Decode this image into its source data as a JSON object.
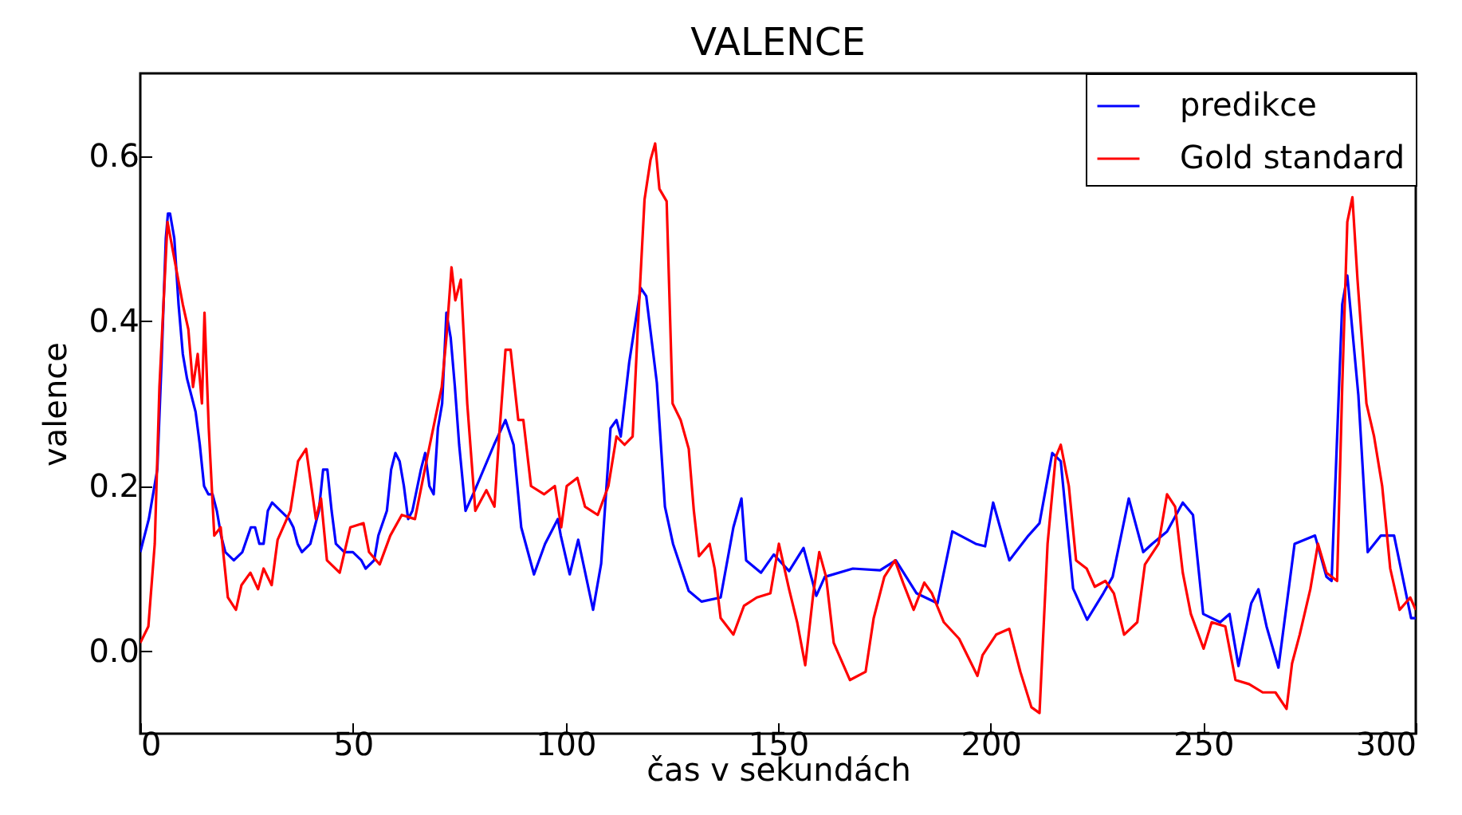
{
  "chart_data": {
    "type": "line",
    "title": "VALENCE",
    "xlabel": "čas v sekundách",
    "ylabel": "valence",
    "xlim": [
      0,
      300
    ],
    "xticks": [
      0,
      50,
      100,
      150,
      200,
      250,
      300
    ],
    "ylim": [
      -0.1,
      0.7
    ],
    "yticks": [
      {
        "value": 0,
        "label": "0.0"
      },
      {
        "value": 0.2,
        "label": "0.2"
      },
      {
        "value": 0.4,
        "label": "0.4"
      },
      {
        "value": 0.6,
        "label": "0.6"
      }
    ],
    "grid": false,
    "legend": "top right",
    "line_style": "solid",
    "marker": "none",
    "series": [
      {
        "name": "predikce",
        "color": "#0000ff",
        "x": [
          0,
          2,
          4,
          5,
          6,
          6.5,
          7,
          8,
          9,
          10,
          11,
          12,
          13,
          14,
          15,
          16,
          17,
          18,
          19,
          20,
          22,
          24,
          26,
          27,
          28,
          29,
          30,
          31,
          33,
          35,
          36,
          37,
          38,
          40,
          41,
          42,
          43,
          44,
          45,
          46,
          48,
          50,
          52,
          53,
          55,
          56,
          58,
          59,
          60,
          61,
          62,
          63,
          64,
          66,
          67,
          68,
          69,
          70,
          71,
          72,
          73,
          74,
          75,
          76.5,
          78.7,
          83.2,
          85.9,
          87.8,
          89.6,
          92.6,
          95.2,
          98.2,
          98.9,
          101,
          103,
          106.5,
          108.4,
          110.6,
          112,
          113,
          115,
          117.7,
          119,
          121.5,
          123.4,
          125.3,
          129,
          132,
          136.5,
          139.5,
          141.4,
          142.5,
          146,
          149,
          152.6,
          156,
          159,
          161,
          167.6,
          174,
          177.7,
          182.6,
          187.5,
          191,
          196.5,
          198.7,
          200.6,
          204.4,
          208.9,
          211.5,
          214.5,
          216.5,
          219.4,
          222.7,
          226.5,
          228.7,
          232.5,
          235.9,
          238,
          241.5,
          245.2,
          247.6,
          250,
          254,
          256.2,
          258.3,
          261.3,
          263,
          264.9,
          267.7,
          271.5,
          276.3,
          279,
          280.2,
          282.7,
          283.9,
          286.5,
          288.7,
          291.8,
          294.9,
          298.9,
          300
        ],
        "values": [
          0.12,
          0.16,
          0.22,
          0.35,
          0.5,
          0.53,
          0.53,
          0.5,
          0.42,
          0.36,
          0.33,
          0.31,
          0.29,
          0.25,
          0.2,
          0.19,
          0.19,
          0.17,
          0.14,
          0.12,
          0.11,
          0.12,
          0.15,
          0.15,
          0.13,
          0.13,
          0.17,
          0.18,
          0.17,
          0.16,
          0.15,
          0.13,
          0.12,
          0.13,
          0.15,
          0.17,
          0.22,
          0.22,
          0.17,
          0.13,
          0.12,
          0.12,
          0.11,
          0.1,
          0.11,
          0.14,
          0.17,
          0.22,
          0.24,
          0.23,
          0.2,
          0.16,
          0.17,
          0.22,
          0.24,
          0.2,
          0.19,
          0.27,
          0.3,
          0.41,
          0.38,
          0.32,
          0.25,
          0.17,
          0.195,
          0.25,
          0.28,
          0.25,
          0.15,
          0.093,
          0.13,
          0.16,
          0.14,
          0.093,
          0.135,
          0.05,
          0.106,
          0.27,
          0.28,
          0.26,
          0.35,
          0.44,
          0.43,
          0.325,
          0.175,
          0.13,
          0.073,
          0.06,
          0.065,
          0.15,
          0.185,
          0.11,
          0.095,
          0.117,
          0.097,
          0.125,
          0.067,
          0.09,
          0.1,
          0.098,
          0.11,
          0.07,
          0.058,
          0.145,
          0.13,
          0.127,
          0.18,
          0.11,
          0.14,
          0.155,
          0.24,
          0.23,
          0.076,
          0.038,
          0.07,
          0.09,
          0.185,
          0.12,
          0.13,
          0.145,
          0.18,
          0.165,
          0.045,
          0.035,
          0.045,
          -0.018,
          0.058,
          0.075,
          0.03,
          -0.02,
          0.13,
          0.14,
          0.09,
          0.085,
          0.42,
          0.455,
          0.31,
          0.12,
          0.14,
          0.14,
          0.04,
          0.04
        ]
      },
      {
        "name": "Gold standard",
        "color": "#ff0000",
        "x": [
          0,
          1.9,
          3.4,
          4.5,
          6.4,
          8.2,
          10,
          11.3,
          12.4,
          13.5,
          14.5,
          15.1,
          16.1,
          17.4,
          18.9,
          20.6,
          22.5,
          23.8,
          25.9,
          27.7,
          29,
          30.9,
          32.3,
          35.3,
          37.1,
          39,
          41.3,
          42.5,
          43.9,
          46.9,
          49.4,
          52.5,
          53.8,
          56.3,
          58.8,
          61.5,
          64.6,
          67.5,
          70.9,
          72,
          73.2,
          74.1,
          75.4,
          76.9,
          78.8,
          81.4,
          83.3,
          84.4,
          85.9,
          87.1,
          88.9,
          90.1,
          91.9,
          95,
          97.5,
          99,
          100.3,
          102.8,
          104.6,
          107.6,
          110.1,
          112,
          113.9,
          115.8,
          117,
          118.6,
          120,
          121.1,
          122.1,
          123.8,
          125.2,
          127.1,
          129,
          130.2,
          131.4,
          133.9,
          135.1,
          136.5,
          139.5,
          142,
          145,
          148.2,
          150.2,
          152.6,
          154.5,
          156.4,
          158.3,
          159.7,
          161.3,
          163.1,
          166.9,
          170.6,
          172.5,
          175,
          177.5,
          179.4,
          181.9,
          184.4,
          186.2,
          189,
          192.6,
          196.9,
          198.1,
          201.3,
          204.4,
          207,
          209.6,
          211.5,
          213.4,
          215.3,
          216.5,
          218.4,
          220.1,
          222.6,
          224.5,
          227,
          229,
          231.4,
          234.5,
          236.3,
          239.5,
          241.5,
          243.4,
          245.2,
          247.1,
          250.1,
          252,
          255.2,
          257.6,
          260.8,
          264,
          267,
          269.6,
          270.9,
          272.7,
          275.2,
          277,
          279,
          281.5,
          282.7,
          283.9,
          285.1,
          286.3,
          288.4,
          290.2,
          292.1,
          294,
          296.2,
          298.7,
          300
        ],
        "values": [
          0.01,
          0.03,
          0.13,
          0.32,
          0.52,
          0.47,
          0.42,
          0.39,
          0.32,
          0.36,
          0.3,
          0.41,
          0.27,
          0.14,
          0.15,
          0.065,
          0.05,
          0.08,
          0.095,
          0.075,
          0.1,
          0.08,
          0.135,
          0.17,
          0.23,
          0.245,
          0.16,
          0.185,
          0.11,
          0.095,
          0.15,
          0.155,
          0.12,
          0.105,
          0.14,
          0.165,
          0.16,
          0.235,
          0.32,
          0.38,
          0.465,
          0.425,
          0.45,
          0.3,
          0.17,
          0.195,
          0.175,
          0.26,
          0.365,
          0.365,
          0.28,
          0.28,
          0.2,
          0.19,
          0.2,
          0.15,
          0.2,
          0.21,
          0.175,
          0.165,
          0.2,
          0.26,
          0.25,
          0.26,
          0.39,
          0.547,
          0.595,
          0.615,
          0.56,
          0.545,
          0.3,
          0.28,
          0.245,
          0.17,
          0.115,
          0.13,
          0.1,
          0.04,
          0.02,
          0.055,
          0.065,
          0.07,
          0.13,
          0.075,
          0.035,
          -0.017,
          0.07,
          0.12,
          0.09,
          0.01,
          -0.035,
          -0.025,
          0.04,
          0.09,
          0.11,
          0.083,
          0.05,
          0.083,
          0.07,
          0.035,
          0.015,
          -0.03,
          -0.005,
          0.02,
          0.027,
          -0.025,
          -0.068,
          -0.075,
          0.13,
          0.235,
          0.25,
          0.2,
          0.11,
          0.1,
          0.078,
          0.085,
          0.07,
          0.02,
          0.035,
          0.105,
          0.13,
          0.19,
          0.175,
          0.095,
          0.045,
          0.003,
          0.035,
          0.03,
          -0.035,
          -0.04,
          -0.05,
          -0.05,
          -0.07,
          -0.015,
          0.02,
          0.075,
          0.13,
          0.095,
          0.085,
          0.32,
          0.52,
          0.55,
          0.45,
          0.3,
          0.26,
          0.2,
          0.1,
          0.05,
          0.065,
          0.05
        ]
      }
    ]
  }
}
